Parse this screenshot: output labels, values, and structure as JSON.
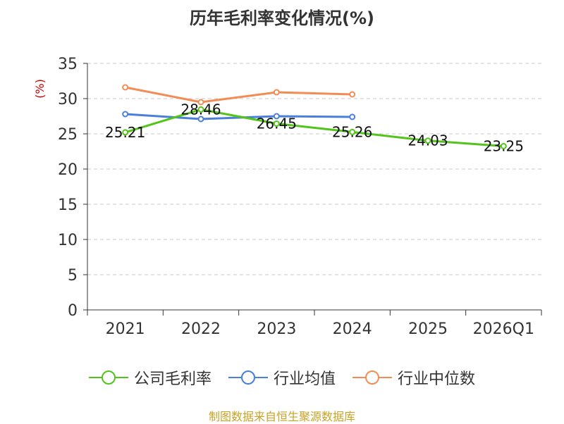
{
  "chart_data": {
    "type": "line",
    "title": "历年毛利率变化情况(%)",
    "ylabel": "(%)",
    "xlabel": "",
    "categories": [
      "2021",
      "2022",
      "2023",
      "2024",
      "2025",
      "2026Q1"
    ],
    "ylim": [
      0,
      35
    ],
    "yticks": [
      0,
      5,
      10,
      15,
      20,
      25,
      30,
      35
    ],
    "grid": true,
    "legend_position": "bottom",
    "series": [
      {
        "name": "公司毛利率",
        "color": "#52c41a",
        "values": [
          25.21,
          28.46,
          26.45,
          25.26,
          24.03,
          23.25
        ],
        "labels": [
          "25.21",
          "28.46",
          "26.45",
          "25.26",
          "24.03",
          "23.25"
        ]
      },
      {
        "name": "行业均值",
        "color": "#4a7fdc",
        "values": [
          27.8,
          27.1,
          27.5,
          27.4,
          null,
          null
        ]
      },
      {
        "name": "行业中位数",
        "color": "#f28c54",
        "values": [
          31.6,
          29.5,
          30.9,
          30.6,
          null,
          null
        ]
      }
    ]
  },
  "footer": {
    "source": "制图数据来自恒生聚源数据库"
  }
}
